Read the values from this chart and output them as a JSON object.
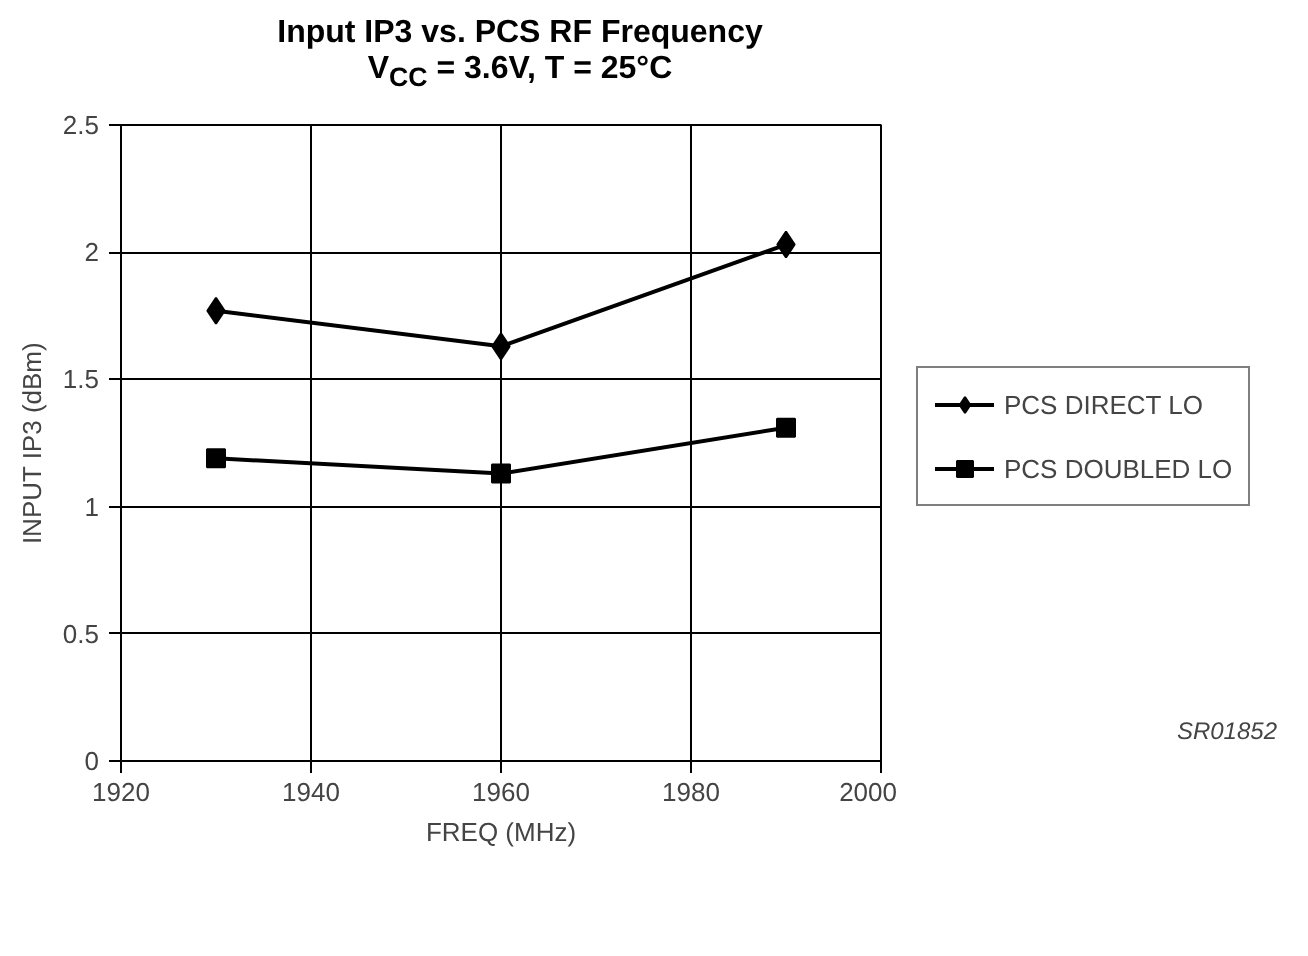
{
  "chart_data": {
    "type": "line",
    "title": "Input IP3 vs. PCS RF Frequency",
    "subtitle": "V$_{CC}$ = 3.6V, T = 25°C",
    "xlabel": "FREQ (MHz)",
    "ylabel": "INPUT IP3 (dBm)",
    "x": [
      1930,
      1960,
      1990
    ],
    "series": [
      {
        "name": "PCS DIRECT LO",
        "color": "#000000",
        "marker": "diamond",
        "values": [
          1.77,
          1.63,
          2.03
        ]
      },
      {
        "name": "PCS DOUBLED LO",
        "color": "#000000",
        "marker": "square",
        "values": [
          1.19,
          1.13,
          1.31
        ]
      }
    ],
    "xlim": [
      1920,
      2000
    ],
    "xticks": [
      1920,
      1940,
      1960,
      1980,
      2000
    ],
    "ylim": [
      0,
      2.5
    ],
    "yticks": [
      0,
      0.5,
      1,
      1.5,
      2,
      2.5
    ],
    "grid": true,
    "legend": "right",
    "line_style": "solid",
    "annotations": [
      "SR01852"
    ]
  }
}
